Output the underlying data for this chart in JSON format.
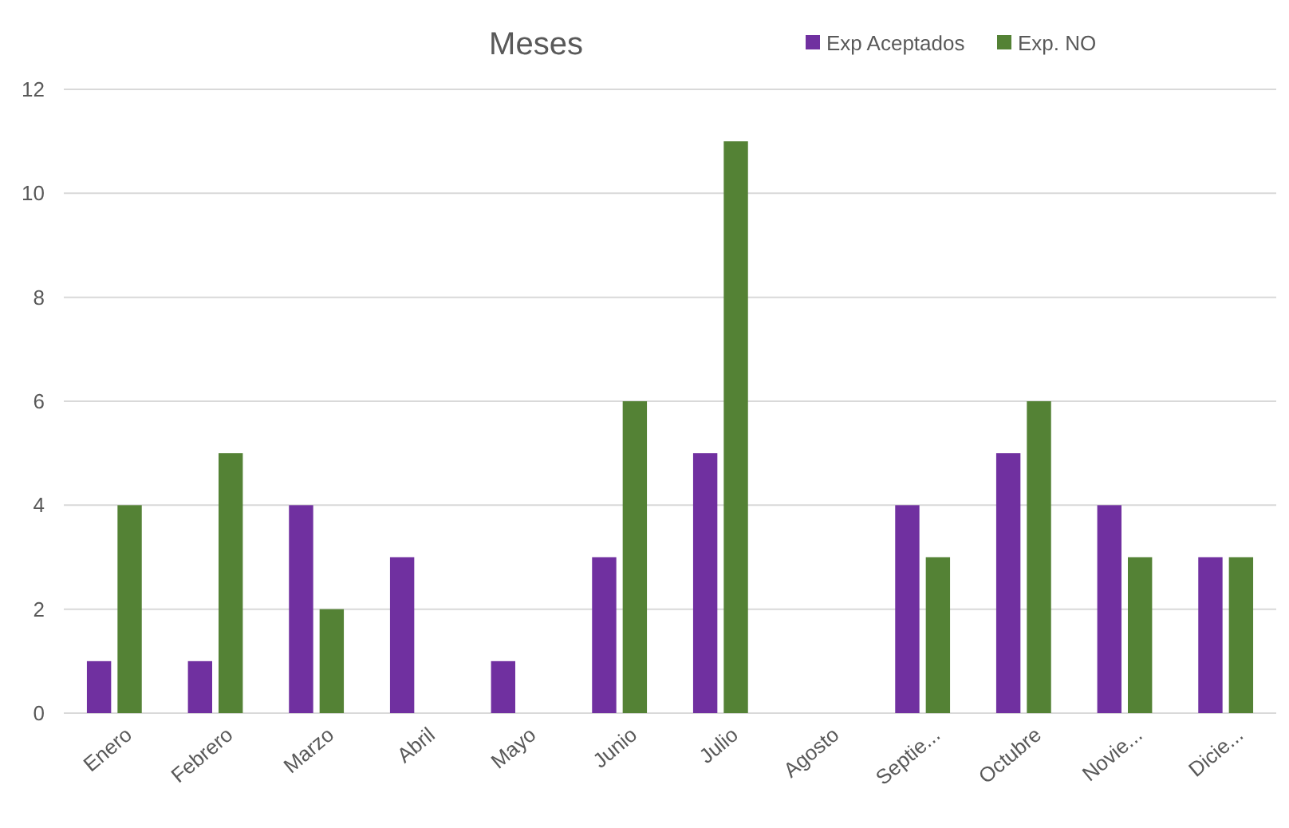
{
  "chart_data": {
    "type": "bar",
    "title": "Meses",
    "categories": [
      "Enero",
      "Febrero",
      "Marzo",
      "Abril",
      "Mayo",
      "Junio",
      "Julio",
      "Agosto",
      "Septie...",
      "Octubre",
      "Novie...",
      "Dicie..."
    ],
    "series": [
      {
        "name": "Exp Aceptados",
        "color": "#7030a0",
        "values": [
          1,
          1,
          4,
          3,
          1,
          3,
          5,
          0,
          4,
          5,
          4,
          3
        ]
      },
      {
        "name": "Exp. NO",
        "color": "#548235",
        "values": [
          4,
          5,
          2,
          0,
          0,
          6,
          11,
          0,
          3,
          6,
          3,
          3
        ]
      }
    ],
    "ylim": [
      0,
      12
    ],
    "yticks": [
      0,
      2,
      4,
      6,
      8,
      10,
      12
    ],
    "grid": "y",
    "legend": "top right"
  }
}
